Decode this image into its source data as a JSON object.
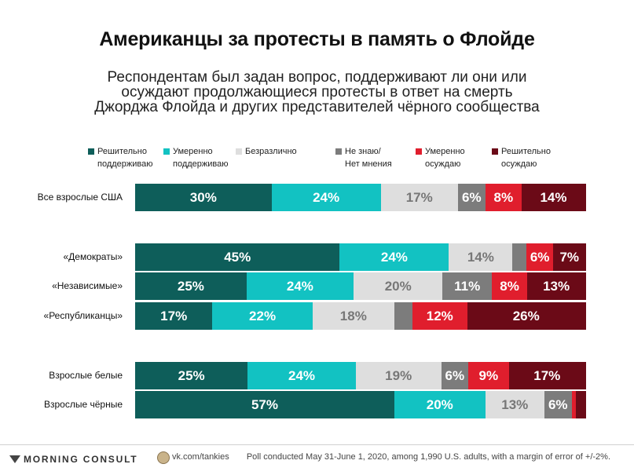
{
  "title": "Американцы за протесты в память о Флойде",
  "subtitle": "Респондентам был задан вопрос, поддерживают ли они или осуждают продолжающиеся протесты в ответ на смерть Джорджа Флойда и других представителей чёрного сообщества",
  "footer": {
    "brand": "MORNING CONSULT",
    "vk": "vk.com/tankies",
    "note": "Poll conducted May 31-June 1, 2020, among 1,990 U.S. adults, with a margin of error of +/-2%."
  },
  "chart_data": {
    "type": "bar",
    "orientation": "horizontal",
    "stacked": true,
    "normalized": true,
    "legend_position": "top",
    "series": [
      {
        "name": "Решительно\nподдерживаю",
        "color": "#0e5e5a"
      },
      {
        "name": "Умеренно\nподдерживаю",
        "color": "#12c2c2"
      },
      {
        "name": "Безразлично",
        "color": "#dedede"
      },
      {
        "name": "Не знаю/\nНет мнения",
        "color": "#7c7c7c"
      },
      {
        "name": "Умеренно\nосуждаю",
        "color": "#e01e2d"
      },
      {
        "name": "Решительно\nосуждаю",
        "color": "#6b0a17"
      }
    ],
    "categories": [
      "Все взрослые США",
      "«Демократы»",
      "«Независимые»",
      "«Республиканцы»",
      "Взрослые белые",
      "Взрослые чёрные"
    ],
    "values": [
      [
        30,
        24,
        17,
        6,
        8,
        14
      ],
      [
        45,
        24,
        14,
        3,
        6,
        7
      ],
      [
        25,
        24,
        20,
        11,
        8,
        13
      ],
      [
        17,
        22,
        18,
        4,
        12,
        26
      ],
      [
        25,
        24,
        19,
        6,
        9,
        17
      ],
      [
        57,
        20,
        13,
        6,
        1,
        2
      ]
    ],
    "labels": [
      [
        "30%",
        "24%",
        "17%",
        "6%",
        "8%",
        "14%"
      ],
      [
        "45%",
        "24%",
        "14%",
        "",
        "6%",
        "7%"
      ],
      [
        "25%",
        "24%",
        "20%",
        "11%",
        "8%",
        "13%"
      ],
      [
        "17%",
        "22%",
        "18%",
        "",
        "12%",
        "26%"
      ],
      [
        "25%",
        "24%",
        "19%",
        "6%",
        "9%",
        "17%"
      ],
      [
        "57%",
        "20%",
        "13%",
        "6%",
        "",
        ""
      ]
    ]
  }
}
